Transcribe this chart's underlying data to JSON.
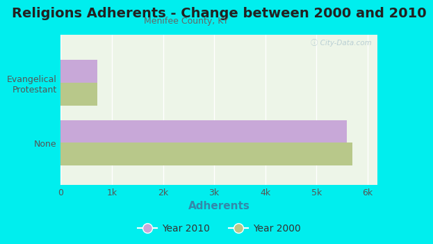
{
  "title": "Religions Adherents - Change between 2000 and 2010",
  "subtitle": "Menifee County, KY",
  "categories": [
    "None",
    "Evangelical\nProtestant"
  ],
  "values_2010": [
    5600,
    720
  ],
  "values_2000": [
    5700,
    720
  ],
  "color_2010": "#c8a8d8",
  "color_2000": "#b8c88a",
  "xlabel": "Adherents",
  "xticks": [
    0,
    1000,
    2000,
    3000,
    4000,
    5000,
    6000
  ],
  "xtick_labels": [
    "0",
    "1k",
    "2k",
    "3k",
    "4k",
    "5k",
    "6k"
  ],
  "xlim": [
    0,
    6200
  ],
  "bg_color": "#00EEEE",
  "plot_bg_color": "#edf5e8",
  "watermark": "ⓘ City-Data.com",
  "bar_height": 0.38,
  "title_fontsize": 14,
  "subtitle_fontsize": 9,
  "xlabel_fontsize": 11,
  "legend_fontsize": 10,
  "ytick_fontsize": 9,
  "xtick_fontsize": 9,
  "title_color": "#222222",
  "subtitle_color": "#666666",
  "xlabel_color": "#3388aa",
  "tick_color": "#555555"
}
